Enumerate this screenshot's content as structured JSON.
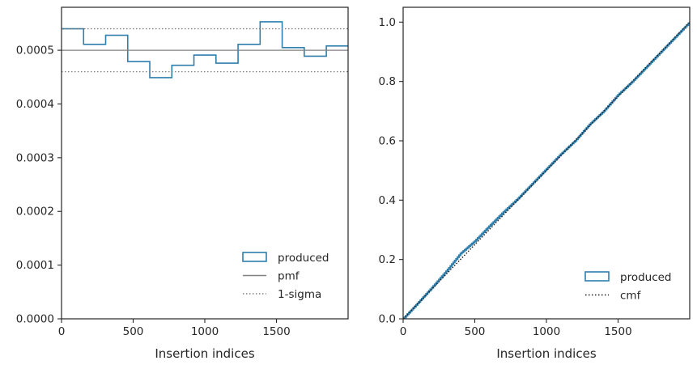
{
  "chart_data": [
    {
      "type": "step",
      "panel": "left",
      "xlabel": "Insertion indices",
      "ylabel": "",
      "xlim": [
        0,
        2000
      ],
      "ylim": [
        0,
        0.00058
      ],
      "xticks": [
        0,
        500,
        1000,
        1500
      ],
      "xtick_labels": [
        "0",
        "500",
        "1000",
        "1500"
      ],
      "yticks": [
        0,
        0.0001,
        0.0002,
        0.0003,
        0.0004,
        0.0005
      ],
      "ytick_labels": [
        "0.0000",
        "0.0001",
        "0.0002",
        "0.0003",
        "0.0004",
        "0.0005"
      ],
      "legend_position": "lower right",
      "series": [
        {
          "name": "produced",
          "kind": "histogram-step",
          "color": "#2e7fae",
          "bin_edges": [
            0,
            154,
            308,
            462,
            616,
            770,
            924,
            1078,
            1232,
            1386,
            1540,
            1694,
            1848,
            2000
          ],
          "values": [
            0.00054,
            0.000511,
            0.000528,
            0.000479,
            0.000449,
            0.000472,
            0.000491,
            0.000476,
            0.000511,
            0.000553,
            0.000505,
            0.000489,
            0.000508
          ]
        },
        {
          "name": "pmf",
          "kind": "hline",
          "color": "#808080",
          "style": "solid",
          "y": 0.0005
        },
        {
          "name": "1-sigma",
          "kind": "hline",
          "color": "#808080",
          "style": "dotted",
          "y": [
            0.00054,
            0.00046
          ]
        }
      ]
    },
    {
      "type": "line",
      "panel": "right",
      "xlabel": "Insertion indices",
      "ylabel": "",
      "xlim": [
        0,
        2000
      ],
      "ylim": [
        0,
        1.05
      ],
      "xticks": [
        0,
        500,
        1000,
        1500
      ],
      "xtick_labels": [
        "0",
        "500",
        "1000",
        "1500"
      ],
      "yticks": [
        0,
        0.2,
        0.4,
        0.6,
        0.8,
        1.0
      ],
      "ytick_labels": [
        "0.0",
        "0.2",
        "0.4",
        "0.6",
        "0.8",
        "1.0"
      ],
      "legend_position": "lower right",
      "series": [
        {
          "name": "produced",
          "kind": "cumulative-step",
          "color": "#2e7fae",
          "x": [
            0,
            100,
            200,
            300,
            400,
            500,
            600,
            700,
            800,
            900,
            1000,
            1100,
            1200,
            1300,
            1400,
            1500,
            1600,
            1700,
            1800,
            1900,
            2000
          ],
          "y": [
            0.0,
            0.052,
            0.105,
            0.16,
            0.22,
            0.262,
            0.312,
            0.36,
            0.405,
            0.455,
            0.505,
            0.555,
            0.6,
            0.655,
            0.7,
            0.755,
            0.8,
            0.85,
            0.9,
            0.95,
            1.0
          ]
        },
        {
          "name": "cmf",
          "kind": "line",
          "color": "#1a1a1a",
          "style": "dotted",
          "x": [
            0,
            2000
          ],
          "y": [
            0.0,
            1.0
          ]
        }
      ]
    }
  ]
}
